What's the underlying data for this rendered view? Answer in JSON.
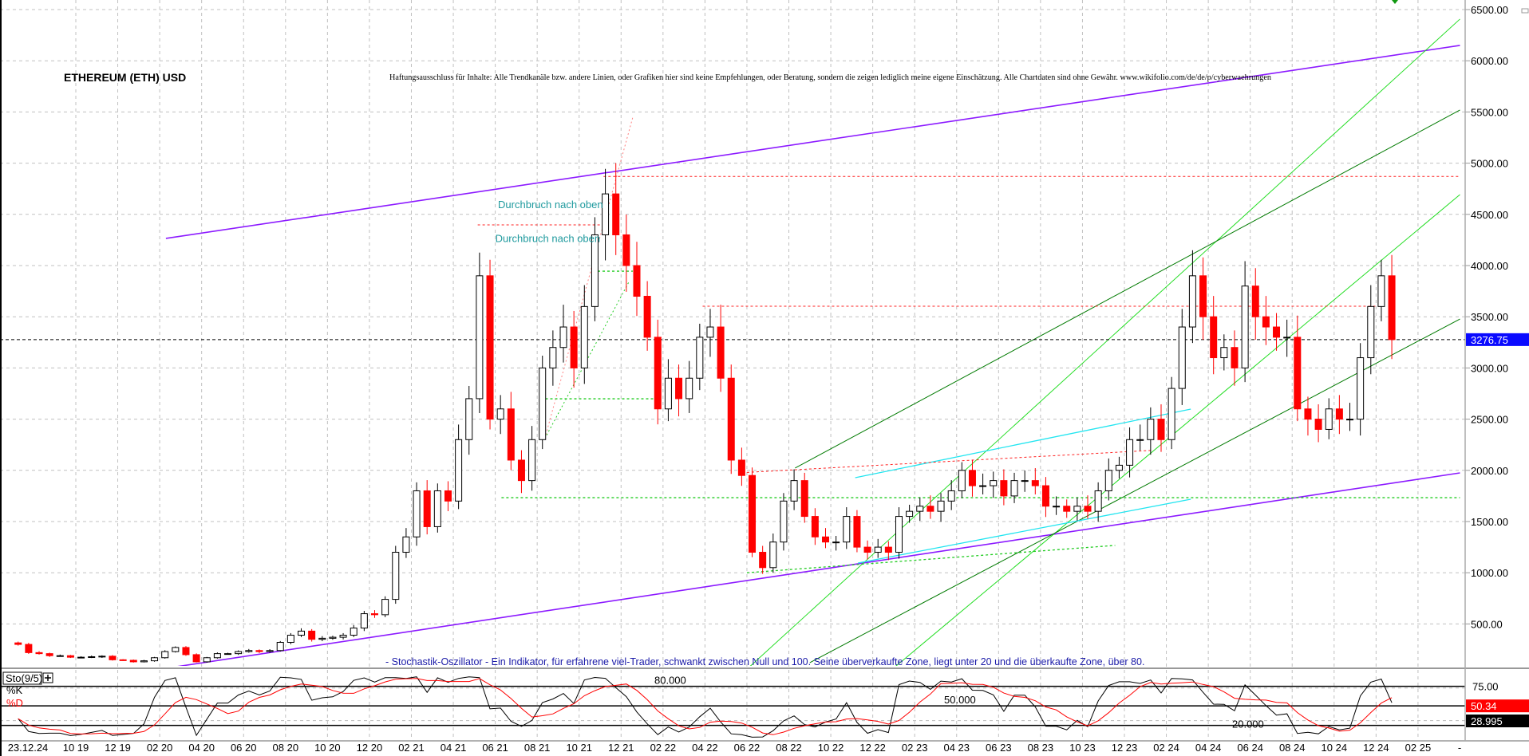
{
  "header": {
    "title": "ETHEREUM (ETH) USD",
    "disclaimer": "Haftungsausschluss für Inhalte: Alle Trendkanäle bzw. andere Linien, oder Grafiken hier sind keine Empfehlungen, oder Beratung, sondern die zeigen lediglich meine eigene Einschätzung. Alle Chartdaten sind ohne Gewähr.  www.wikifolio.com/de/de/p/cyberwaehrungen"
  },
  "colors": {
    "up_candle": "#000000",
    "down_candle": "#ff0000",
    "purple_trend": "#8c1aff",
    "dark_green": "#007a00",
    "light_green": "#22dd22",
    "cyan": "#22e5f0",
    "red_dashed": "#ff2020",
    "green_dashed": "#22cc22",
    "current_price_bg": "#0a0aff",
    "k_line": "#000000",
    "d_line": "#ff0000"
  },
  "chart_data": [
    {
      "type": "candlestick",
      "title": "ETHEREUM (ETH) USD",
      "ylim": [
        0,
        6500
      ],
      "y_ticks": [
        "500.00",
        "1000.00",
        "1500.00",
        "2000.00",
        "2500.00",
        "3000.00",
        "3500.00",
        "4000.00",
        "4500.00",
        "5000.00",
        "5500.00",
        "6000.00",
        "6500.00"
      ],
      "x_tick_labels": [
        "23.12.24",
        "10 19",
        "12 19",
        "02 20",
        "04 20",
        "06 20",
        "08 20",
        "10 20",
        "12 20",
        "02 21",
        "04 21",
        "06 21",
        "08 21",
        "10 21",
        "12 21",
        "02 22",
        "04 22",
        "06 22",
        "08 22",
        "10 22",
        "12 22",
        "02 23",
        "04 23",
        "06 23",
        "08 23",
        "10 23",
        "12 23",
        "02 24",
        "04 24",
        "06 24",
        "08 24",
        "10 24",
        "12 24",
        "02 25",
        "-"
      ],
      "grid": true,
      "series_start": "2019-07",
      "interval": "half-month",
      "closes": [
        300,
        220,
        210,
        190,
        190,
        175,
        175,
        180,
        185,
        150,
        145,
        130,
        140,
        170,
        230,
        270,
        200,
        130,
        170,
        210,
        210,
        230,
        240,
        230,
        240,
        320,
        390,
        430,
        350,
        360,
        370,
        390,
        460,
        600,
        590,
        740,
        1200,
        1350,
        1800,
        1450,
        1800,
        1700,
        2300,
        2700,
        3900,
        2500,
        2600,
        2100,
        1900,
        2300,
        3000,
        3200,
        3400,
        3000,
        3600,
        4300,
        4700,
        4300,
        4000,
        3700,
        3300,
        2600,
        2900,
        2700,
        2900,
        3300,
        3400,
        2900,
        2100,
        1950,
        1200,
        1050,
        1300,
        1700,
        1900,
        1550,
        1350,
        1300,
        1300,
        1550,
        1250,
        1200,
        1250,
        1200,
        1550,
        1600,
        1650,
        1600,
        1700,
        1800,
        2000,
        1850,
        1850,
        1900,
        1750,
        1900,
        1900,
        1850,
        1650,
        1650,
        1600,
        1650,
        1600,
        1800,
        2000,
        2050,
        2300,
        2300,
        2500,
        2300,
        2800,
        3400,
        3900,
        3500,
        3100,
        3200,
        3000,
        3800,
        3500,
        3400,
        3300,
        3300,
        2600,
        2500,
        2400,
        2600,
        2500,
        2500,
        3100,
        3600,
        3900,
        3277
      ],
      "current_price": "3276.75",
      "annotations": [
        {
          "text": "Durchbruch nach oben",
          "date": "2021-06-05",
          "price": 4560
        },
        {
          "text": "Durchbruch nach oben",
          "date": "2021-06-01",
          "price": 4230
        }
      ],
      "trend_lines": [
        {
          "kind": "purple",
          "from": [
            "2020-02-10",
            4265
          ],
          "to": [
            "2025-04-01",
            6150
          ]
        },
        {
          "kind": "purple",
          "from": [
            "2020-02-10",
            67
          ],
          "to": [
            "2025-04-01",
            1975
          ]
        },
        {
          "kind": "light_green",
          "from": [
            "2022-05-22",
            0
          ],
          "to": [
            "2025-04-01",
            6407
          ]
        },
        {
          "kind": "light_green",
          "from": [
            "2022-12-19",
            0
          ],
          "to": [
            "2025-04-01",
            4693
          ]
        },
        {
          "kind": "dark_green",
          "from": [
            "2022-08-10",
            2022
          ],
          "to": [
            "2025-04-01",
            5519
          ]
        },
        {
          "kind": "dark_green",
          "from": [
            "2022-09-01",
            122
          ],
          "to": [
            "2025-04-01",
            3478
          ]
        },
        {
          "kind": "cyan",
          "from": [
            "2022-11-06",
            1928
          ],
          "to": [
            "2024-03-06",
            2598
          ]
        },
        {
          "kind": "cyan",
          "from": [
            "2022-11-10",
            1095
          ],
          "to": [
            "2024-03-06",
            1718
          ]
        },
        {
          "kind": "red_dashed",
          "from": [
            "2021-11-06",
            4870
          ],
          "to": [
            "2025-04-01",
            4870
          ]
        },
        {
          "kind": "red_dashed",
          "from": [
            "2022-03-28",
            3603
          ],
          "to": [
            "2024-12-12",
            3603
          ]
        },
        {
          "kind": "red_dashed",
          "from": [
            "2021-05-06",
            4397
          ],
          "to": [
            "2021-11-06",
            4397
          ]
        },
        {
          "kind": "red_dashed",
          "from": [
            "2022-06-01",
            1980
          ],
          "to": [
            "2024-01-10",
            2195
          ]
        },
        {
          "kind": "red_dotted",
          "from": [
            "2021-08-12",
            2310
          ],
          "to": [
            "2021-12-18",
            5449
          ]
        },
        {
          "kind": "green_dashed",
          "from": [
            "2021-06-10",
            1733
          ],
          "to": [
            "2025-04-01",
            1733
          ]
        },
        {
          "kind": "green_dashed",
          "from": [
            "2021-08-06",
            2699
          ],
          "to": [
            "2022-01-18",
            2699
          ]
        },
        {
          "kind": "green_dashed",
          "from": [
            "2021-10-21",
            3945
          ],
          "to": [
            "2021-12-18",
            3945
          ]
        },
        {
          "kind": "green_dotted",
          "from": [
            "2021-08-12",
            2310
          ],
          "to": [
            "2021-12-12",
            3836
          ]
        },
        {
          "kind": "green_dashed",
          "from": [
            "2022-06-01",
            1000
          ],
          "to": [
            "2023-11-18",
            1267
          ]
        },
        {
          "kind": "green_dashed",
          "from": [
            "2020-12-25",
            75
          ],
          "to": [
            "2025-04-01",
            75
          ]
        }
      ]
    },
    {
      "type": "line",
      "indicator": "Sto(9/5)",
      "k_label": "%K",
      "d_label": "%D",
      "ylim": [
        0,
        100
      ],
      "levels": [
        {
          "value": 80,
          "label": "80.000"
        },
        {
          "value": 50,
          "label": "50.000"
        },
        {
          "value": 20,
          "label": "20.000"
        }
      ],
      "axis_label": "75.00",
      "d_value": "50.34",
      "k_value": "28.995",
      "description": "- Stochastik-Oszillator - Ein Indikator, für erfahrene viel-Trader, schwankt zwischen Null und 100. Seine überverkaufte Zone, liegt unter 20 und die überkaufte Zone, über 80."
    }
  ]
}
